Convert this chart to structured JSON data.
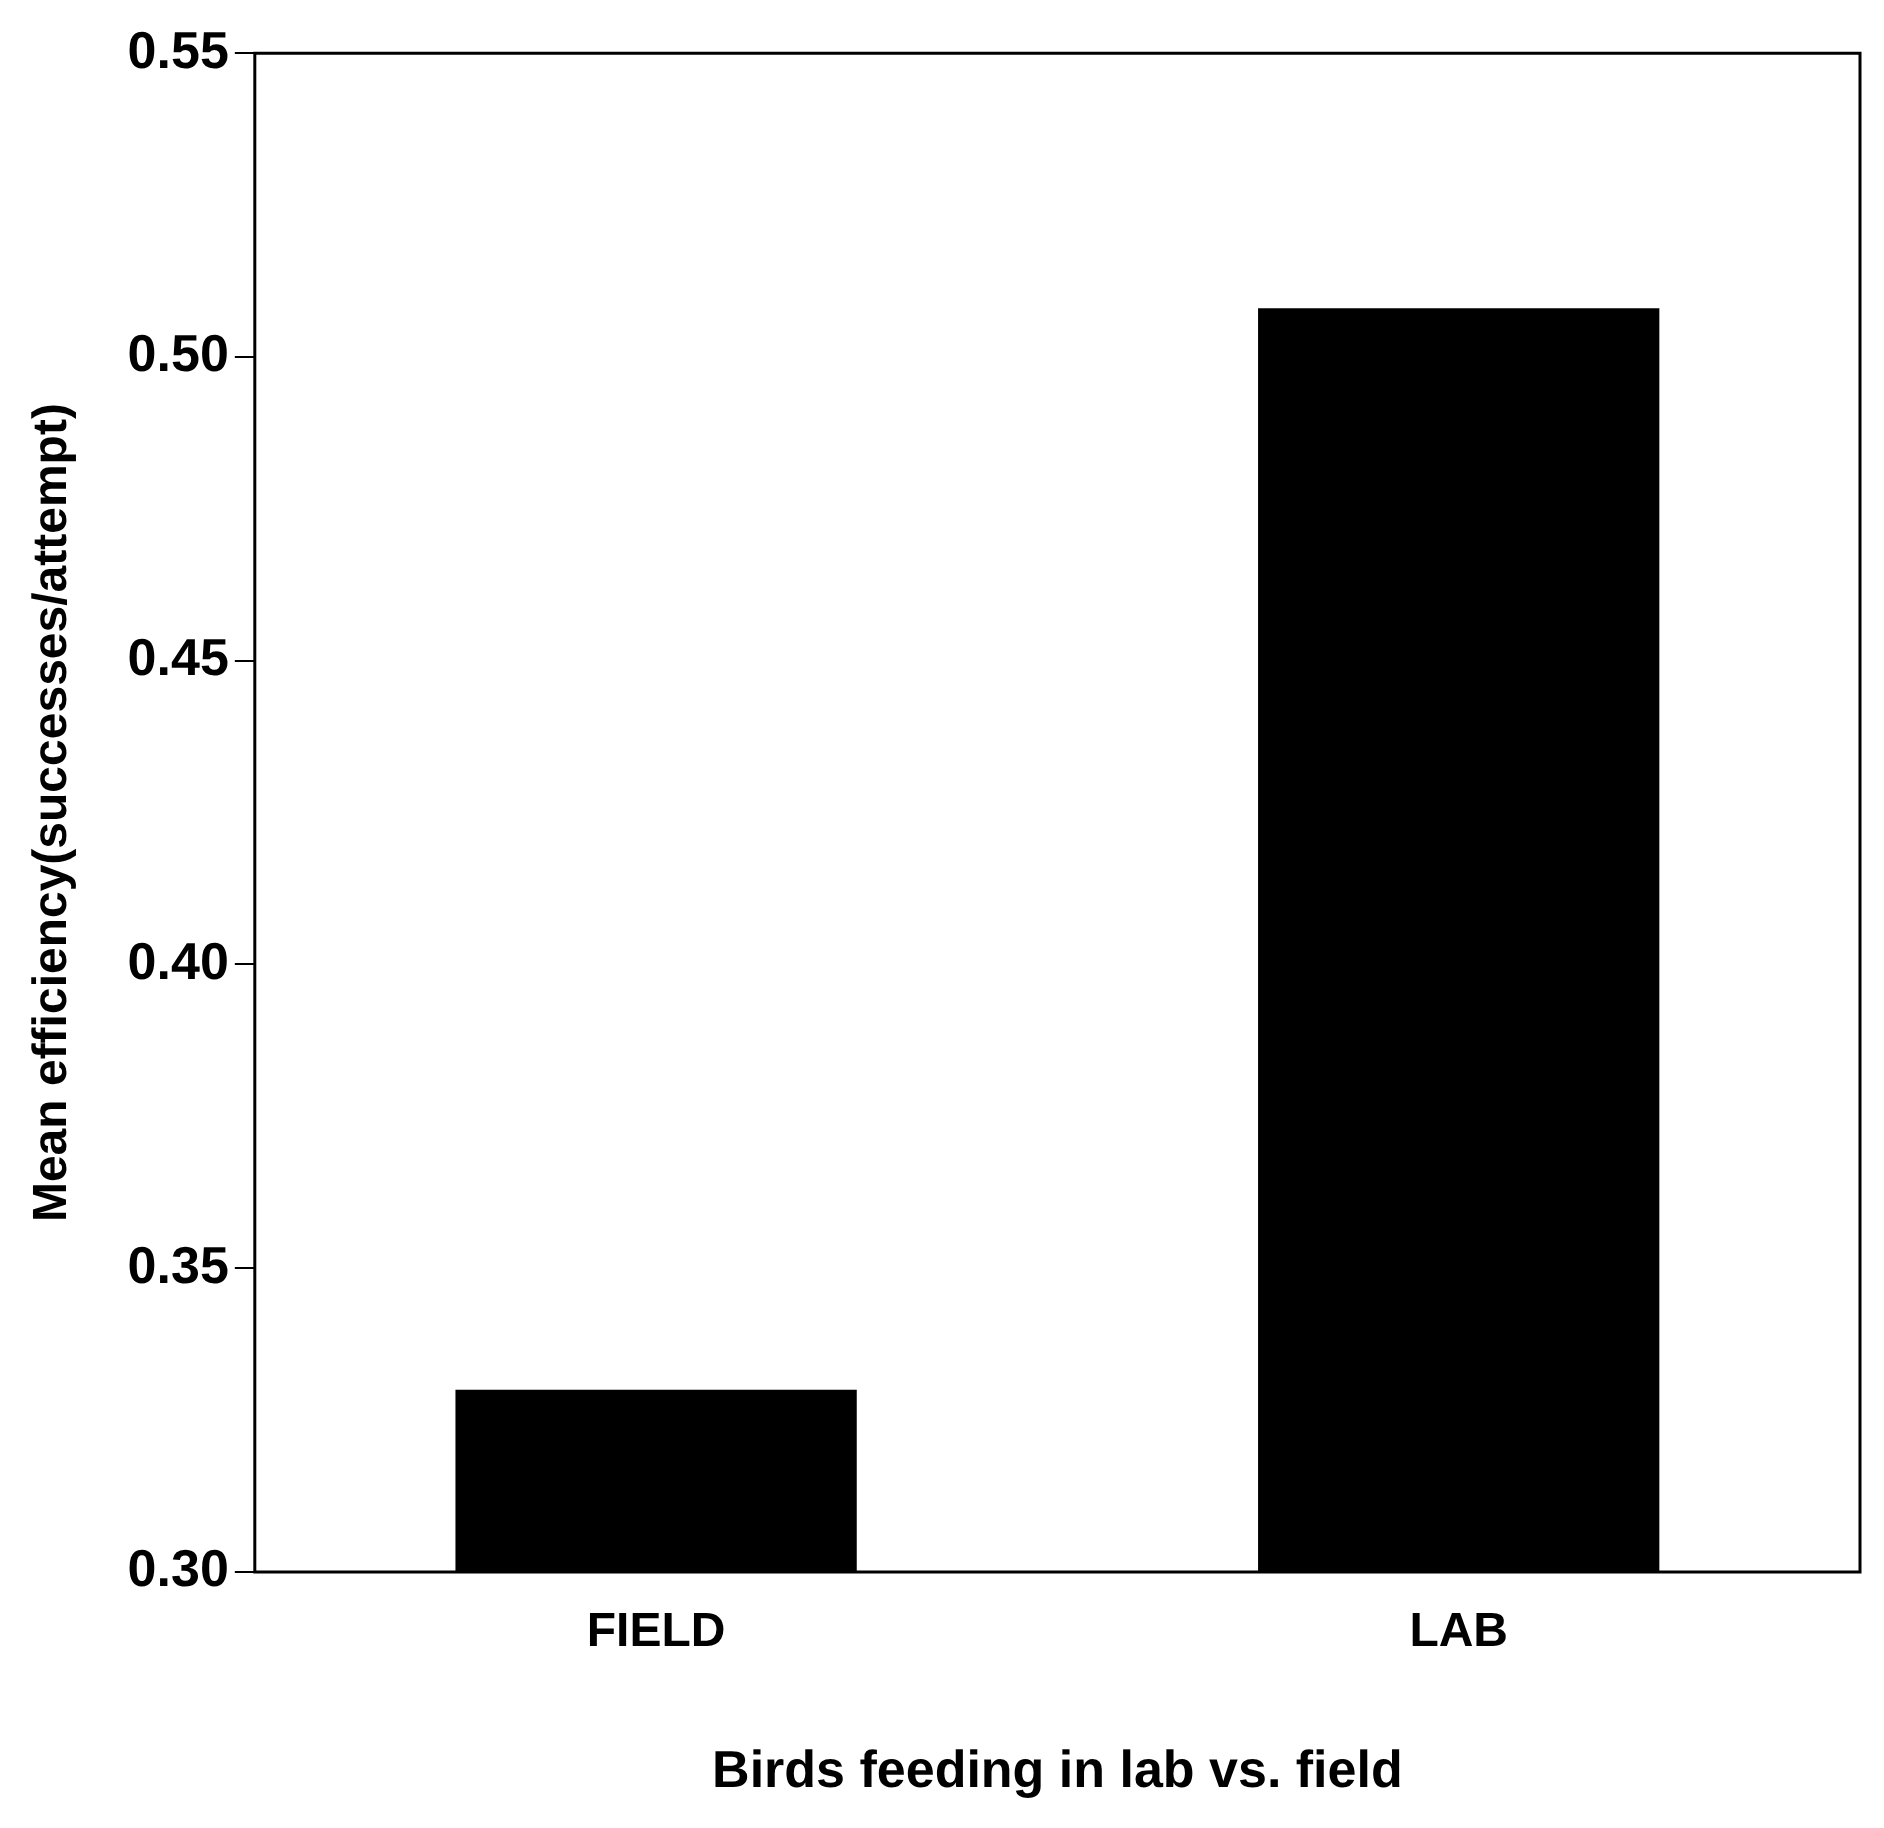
{
  "chart_data": {
    "type": "bar",
    "xlabel": "Birds feeding in lab vs. field",
    "ylabel": "Mean efficiency(successes/attempt)",
    "categories": [
      "FIELD",
      "LAB"
    ],
    "values": [
      0.33,
      0.508
    ],
    "color": "#000000",
    "ylim": [
      0.3,
      0.55
    ],
    "yticks": [
      {
        "value": 0.3,
        "label": "0.30"
      },
      0.35,
      {
        "value": 0.4,
        "label": "0.40"
      },
      0.45,
      {
        "value": 0.5,
        "label": "0.50"
      },
      0.55
    ],
    "grid": false,
    "legend": false
  }
}
